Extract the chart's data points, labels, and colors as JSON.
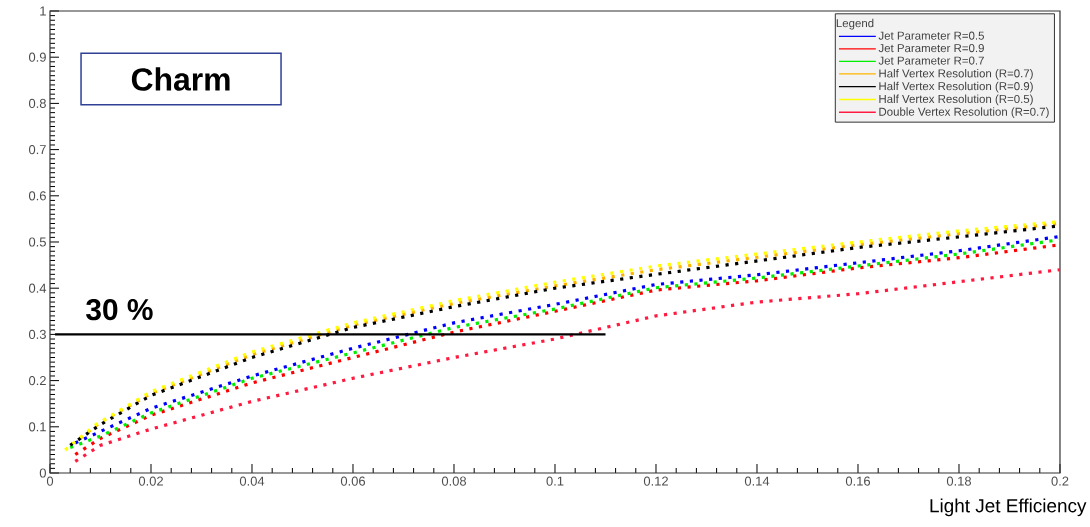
{
  "chart_data": {
    "type": "line",
    "xlabel": "Light Jet Efficiency",
    "legend_title": "Legend",
    "legend": "top right",
    "line_style": "dotted",
    "marker": "none",
    "xlim": [
      0,
      0.2
    ],
    "ylim": [
      0,
      1
    ],
    "xticks": [
      0,
      0.02,
      0.04,
      0.06,
      0.08,
      0.1,
      0.12,
      0.14,
      0.16,
      0.18,
      0.2
    ],
    "yticks": [
      0,
      0.1,
      0.2,
      0.3,
      0.4,
      0.5,
      0.6,
      0.7,
      0.8,
      0.9,
      1
    ],
    "annotations": [
      "Charm",
      {
        "text": "30 %",
        "x": 0.003,
        "y": 0.3
      }
    ],
    "series": [
      {
        "name": "Jet Parameter R=0.5",
        "color": "#0000ff",
        "x": [
          0.005,
          0.01,
          0.02,
          0.04,
          0.06,
          0.08,
          0.1,
          0.12,
          0.14,
          0.16,
          0.18,
          0.2
        ],
        "values": [
          0.065,
          0.09,
          0.14,
          0.21,
          0.27,
          0.325,
          0.365,
          0.408,
          0.429,
          0.455,
          0.481,
          0.512
        ]
      },
      {
        "name": "Jet Parameter R=0.9",
        "color": "#ff0000",
        "x": [
          0.005,
          0.01,
          0.02,
          0.04,
          0.06,
          0.08,
          0.1,
          0.12,
          0.14,
          0.16,
          0.18,
          0.2
        ],
        "values": [
          0.04,
          0.075,
          0.125,
          0.195,
          0.25,
          0.305,
          0.35,
          0.396,
          0.416,
          0.444,
          0.466,
          0.494
        ]
      },
      {
        "name": "Jet Parameter R=0.7",
        "color": "#00ee00",
        "x": [
          0.004,
          0.01,
          0.02,
          0.04,
          0.06,
          0.08,
          0.1,
          0.12,
          0.14,
          0.16,
          0.18,
          0.2
        ],
        "values": [
          0.055,
          0.08,
          0.13,
          0.205,
          0.26,
          0.315,
          0.355,
          0.401,
          0.422,
          0.448,
          0.474,
          0.505
        ]
      },
      {
        "name": "Half Vertex Resolution (R=0.7)",
        "color": "#ffb400",
        "x": [
          0.006,
          0.01,
          0.02,
          0.04,
          0.06,
          0.08,
          0.1,
          0.12,
          0.14,
          0.16,
          0.18,
          0.2
        ],
        "values": [
          0.075,
          0.11,
          0.172,
          0.256,
          0.32,
          0.367,
          0.405,
          0.44,
          0.467,
          0.494,
          0.518,
          0.54
        ]
      },
      {
        "name": "Half Vertex Resolution (R=0.9)",
        "color": "#000000",
        "x": [
          0.004,
          0.01,
          0.02,
          0.04,
          0.06,
          0.08,
          0.1,
          0.12,
          0.14,
          0.16,
          0.18,
          0.2
        ],
        "values": [
          0.06,
          0.105,
          0.168,
          0.25,
          0.315,
          0.36,
          0.4,
          0.43,
          0.459,
          0.488,
          0.511,
          0.535
        ]
      },
      {
        "name": "Half Vertex Resolution (R=0.5)",
        "color": "#ffff00",
        "x": [
          0.003,
          0.009,
          0.02,
          0.04,
          0.06,
          0.08,
          0.1,
          0.12,
          0.14,
          0.16,
          0.18,
          0.2
        ],
        "values": [
          0.05,
          0.104,
          0.176,
          0.262,
          0.325,
          0.373,
          0.413,
          0.448,
          0.474,
          0.5,
          0.524,
          0.544
        ]
      },
      {
        "name": "Double Vertex Resolution (R=0.7)",
        "color": "#ff1a40",
        "x": [
          0.005,
          0.01,
          0.02,
          0.04,
          0.06,
          0.08,
          0.1,
          0.12,
          0.14,
          0.16,
          0.18,
          0.2
        ],
        "values": [
          0.025,
          0.06,
          0.095,
          0.155,
          0.205,
          0.25,
          0.29,
          0.34,
          0.37,
          0.388,
          0.414,
          0.44
        ]
      },
      {
        "type": "line",
        "line_style": "solid",
        "color": "#000000",
        "x": [
          0.001,
          0.11
        ],
        "values": [
          0.3,
          0.3
        ]
      }
    ]
  }
}
